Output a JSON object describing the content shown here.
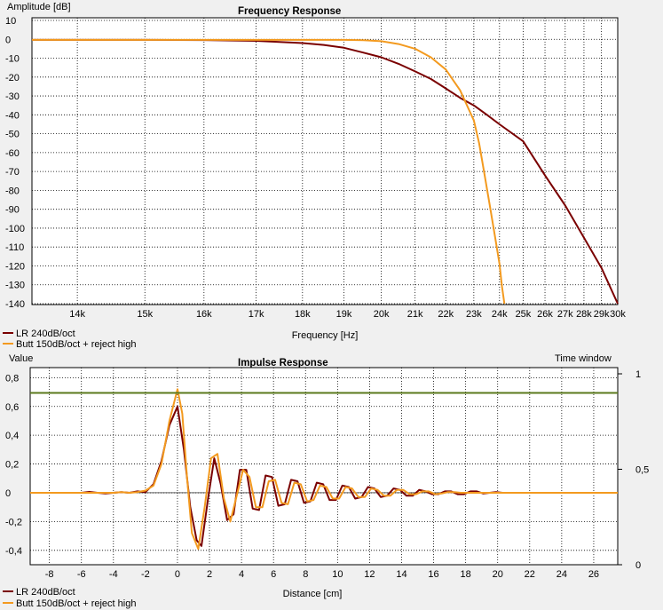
{
  "chart_data": [
    {
      "type": "line",
      "title": "Frequency Response",
      "ylabel": "Amplitude [dB]",
      "xlabel": "Frequency [Hz]",
      "x_scale": "reciprocal",
      "xlim": [
        13400,
        30000
      ],
      "ylim": [
        -140,
        10
      ],
      "grid": true,
      "legend_position": "bottom-left",
      "x_ticks": [
        14000,
        15000,
        16000,
        17000,
        18000,
        19000,
        20000,
        21000,
        22000,
        23000,
        24000,
        25000,
        26000,
        27000,
        28000,
        29000,
        30000
      ],
      "x_tick_labels": [
        "14k",
        "15k",
        "16k",
        "17k",
        "18k",
        "19k",
        "20k",
        "21k",
        "22k",
        "23k",
        "24k",
        "25k",
        "26k",
        "27k",
        "28k",
        "29k",
        "30k"
      ],
      "y_ticks": [
        10,
        0,
        -10,
        -20,
        -30,
        -40,
        -50,
        -60,
        -70,
        -80,
        -90,
        -100,
        -110,
        -120,
        -130,
        -140
      ],
      "y_tick_labels": [
        "10",
        "0",
        "-10",
        "-20",
        "-30",
        "-40",
        "-50",
        "-60",
        "-70",
        "-80",
        "-90",
        "-100",
        "-110",
        "-120",
        "-130",
        "-140"
      ],
      "series": [
        {
          "name": "LR 240dB/oct",
          "color": "#7a0000",
          "x": [
            13400,
            15000,
            16000,
            17000,
            18000,
            18500,
            19000,
            19500,
            20000,
            20500,
            21000,
            21500,
            22000,
            22500,
            23000,
            23500,
            24000,
            25000,
            26000,
            27000,
            28000,
            29000,
            30000
          ],
          "y": [
            -0.3,
            -0.3,
            -0.4,
            -0.8,
            -2,
            -3,
            -4.5,
            -7,
            -9.5,
            -13,
            -17,
            -21,
            -26,
            -31,
            -35,
            -40,
            -45,
            -54,
            -72,
            -88,
            -105,
            -121,
            -140
          ]
        },
        {
          "name": "Butt 150dB/oct + reject high",
          "color": "#f39a1f",
          "x": [
            13400,
            15000,
            16000,
            17000,
            18000,
            19000,
            19500,
            20000,
            20500,
            21000,
            21500,
            22000,
            22500,
            23000,
            23200,
            23400,
            23600,
            23800,
            24000,
            24100,
            24200
          ],
          "y": [
            -0.3,
            -0.3,
            -0.3,
            -0.3,
            -0.3,
            -0.3,
            -0.5,
            -1,
            -2.5,
            -5,
            -9.5,
            -16,
            -27,
            -43,
            -55,
            -71,
            -87,
            -103,
            -119,
            -131,
            -140
          ]
        }
      ]
    },
    {
      "type": "line",
      "title": "Impulse Response",
      "ylabel": "Value",
      "xlabel": "Distance [cm]",
      "secondary_ylabel": "Time window",
      "xlim": [
        -9.2,
        27.5
      ],
      "ylim": [
        -0.5,
        0.87
      ],
      "secondary_ylim": [
        0,
        1
      ],
      "grid": true,
      "legend_position": "bottom-left",
      "x_ticks": [
        -8,
        -6,
        -4,
        -2,
        0,
        2,
        4,
        6,
        8,
        10,
        12,
        14,
        16,
        18,
        20,
        22,
        24,
        26
      ],
      "x_tick_labels": [
        "-8",
        "-6",
        "-4",
        "-2",
        "0",
        "2",
        "4",
        "6",
        "8",
        "10",
        "12",
        "14",
        "16",
        "18",
        "20",
        "22",
        "24",
        "26"
      ],
      "y_ticks": [
        0.8,
        0.6,
        0.4,
        0.2,
        0,
        -0.2,
        -0.4
      ],
      "y_tick_labels": [
        "0,8",
        "0,6",
        "0,4",
        "0,2",
        "0",
        "-0,2",
        "-0,4"
      ],
      "secondary_ticks": [
        1,
        0.5,
        0
      ],
      "secondary_tick_labels": [
        "1",
        "0,5",
        "0"
      ],
      "window_value": 0.9,
      "series": [
        {
          "name": "LR 240dB/oct",
          "color": "#7a0000",
          "x": [
            -9.2,
            -6,
            -5.5,
            -5,
            -4.5,
            -4,
            -3.5,
            -3,
            -2.5,
            -2,
            -1.5,
            -1,
            -0.5,
            0,
            0.4,
            0.8,
            1.2,
            1.5,
            1.9,
            2.3,
            2.7,
            3.1,
            3.5,
            3.9,
            4.3,
            4.7,
            5.1,
            5.5,
            5.9,
            6.3,
            6.7,
            7.1,
            7.5,
            7.9,
            8.3,
            8.7,
            9.1,
            9.5,
            9.9,
            10.3,
            10.7,
            11.1,
            11.5,
            11.9,
            12.3,
            12.7,
            13.1,
            13.5,
            13.9,
            14.3,
            14.7,
            15.1,
            15.5,
            15.9,
            16.3,
            16.7,
            17.1,
            17.5,
            17.9,
            18.3,
            18.7,
            19.1,
            19.5,
            19.9,
            20.3,
            20.7,
            27.5
          ],
          "y": [
            0,
            0,
            0.006,
            0,
            -0.005,
            0,
            0.005,
            0,
            0.01,
            0.005,
            0.06,
            0.22,
            0.47,
            0.6,
            0.3,
            -0.1,
            -0.33,
            -0.37,
            -0.05,
            0.24,
            0.06,
            -0.19,
            -0.15,
            0.16,
            0.16,
            -0.11,
            -0.12,
            0.12,
            0.11,
            -0.09,
            -0.08,
            0.09,
            0.08,
            -0.07,
            -0.06,
            0.07,
            0.06,
            -0.05,
            -0.05,
            0.05,
            0.04,
            -0.04,
            -0.03,
            0.04,
            0.03,
            -0.03,
            -0.02,
            0.03,
            0.02,
            -0.02,
            -0.02,
            0.02,
            0.01,
            -0.01,
            -0.01,
            0.01,
            0.01,
            -0.01,
            -0.01,
            0.01,
            0.01,
            -0.005,
            0,
            0.005,
            0,
            0,
            0
          ]
        },
        {
          "name": "Butt 150dB/oct + reject high",
          "color": "#f39a1f",
          "x": [
            -9.2,
            -5,
            -4,
            -3.5,
            -3,
            -2.5,
            -2,
            -1.5,
            -1,
            -0.5,
            0,
            0.3,
            0.6,
            0.9,
            1.3,
            1.7,
            2.1,
            2.5,
            2.9,
            3.3,
            3.7,
            4.1,
            4.5,
            4.9,
            5.3,
            5.7,
            6.1,
            6.5,
            6.9,
            7.3,
            7.7,
            8.1,
            8.5,
            8.9,
            9.3,
            9.7,
            10.1,
            10.5,
            10.9,
            11.3,
            11.7,
            12.1,
            12.5,
            12.9,
            13.3,
            13.7,
            14.1,
            14.5,
            14.9,
            15.3,
            15.7,
            16.1,
            16.5,
            16.9,
            17.3,
            17.7,
            18.1,
            18.5,
            27.5
          ],
          "y": [
            0,
            0,
            0,
            0.005,
            0,
            0.005,
            0.015,
            0.05,
            0.2,
            0.5,
            0.72,
            0.55,
            0.1,
            -0.28,
            -0.39,
            -0.1,
            0.24,
            0.27,
            -0.04,
            -0.2,
            -0.02,
            0.16,
            0.11,
            -0.1,
            -0.1,
            0.08,
            0.09,
            -0.07,
            -0.08,
            0.07,
            0.06,
            -0.06,
            -0.05,
            0.05,
            0.04,
            -0.04,
            -0.04,
            0.04,
            0.03,
            -0.03,
            -0.03,
            0.03,
            0.02,
            -0.02,
            -0.02,
            0.02,
            0.02,
            -0.01,
            -0.01,
            0.01,
            0.01,
            -0.01,
            -0.005,
            0.005,
            0.005,
            0,
            0,
            0,
            0
          ]
        }
      ]
    }
  ]
}
